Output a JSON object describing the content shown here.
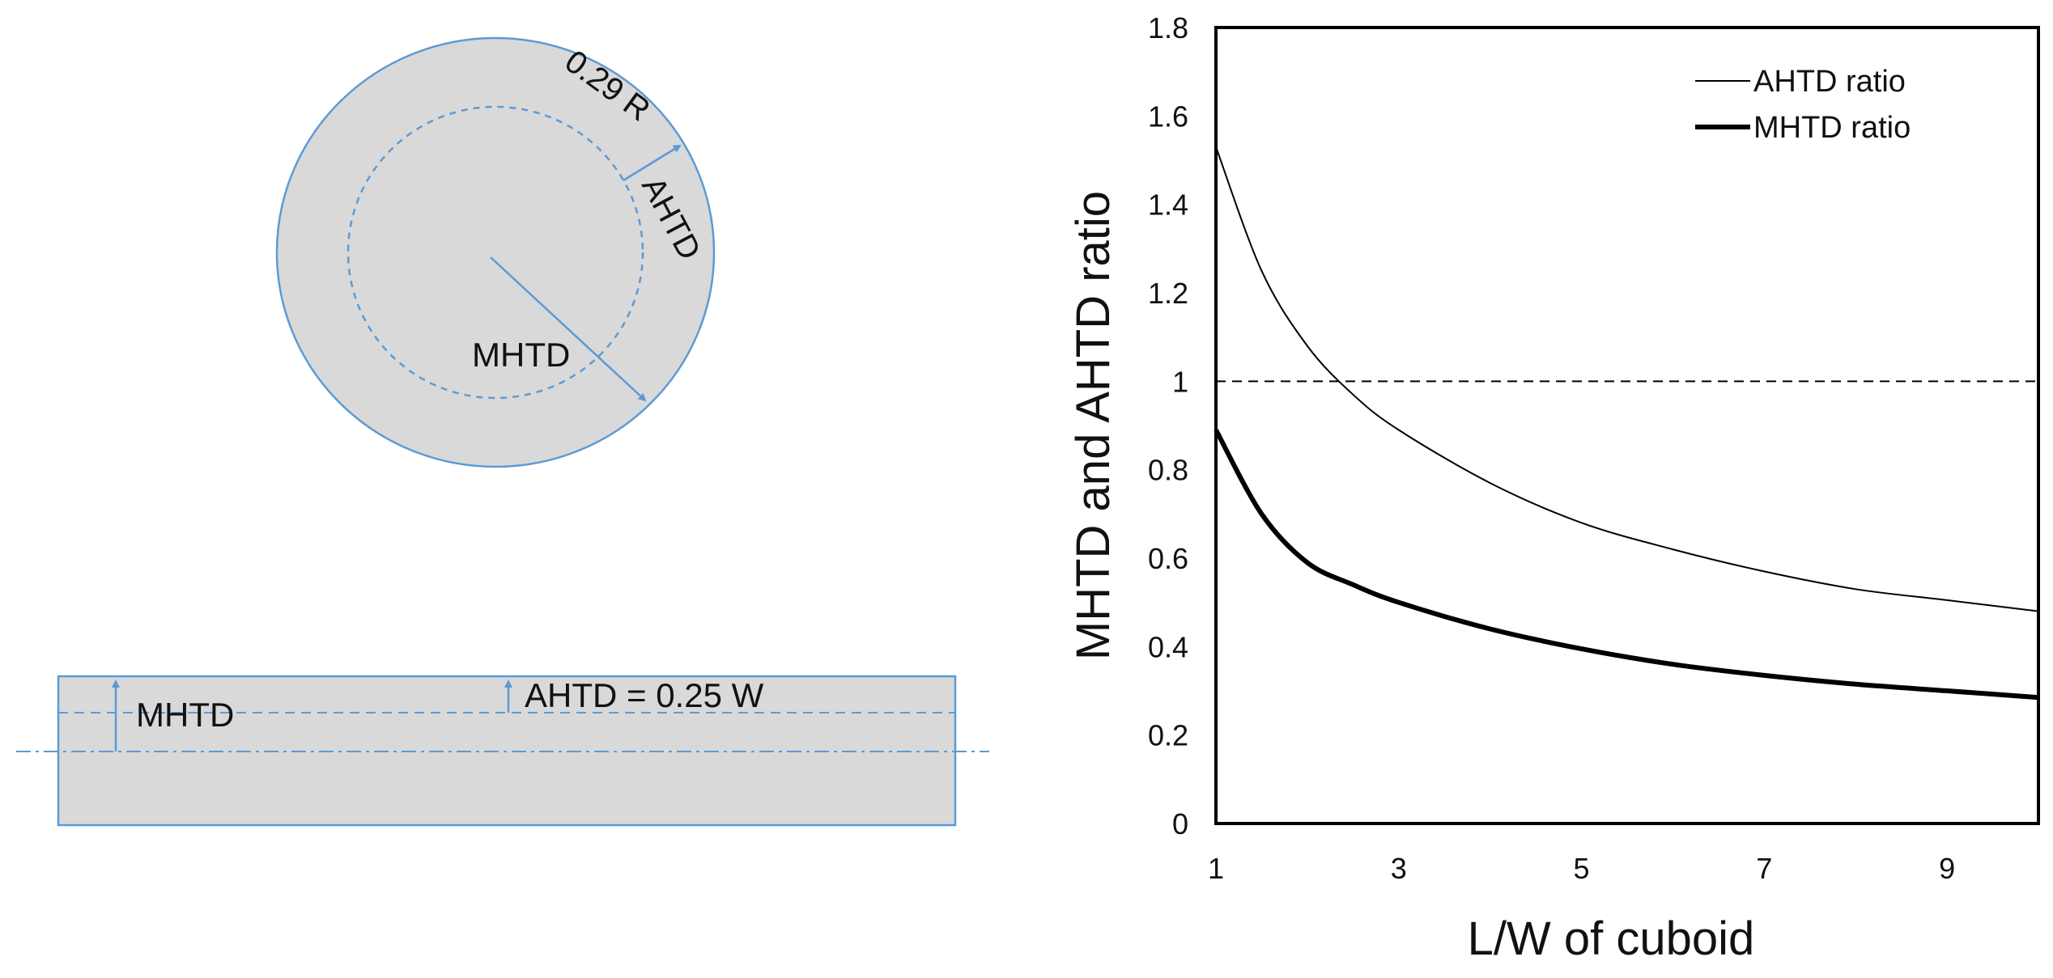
{
  "diagram": {
    "circle_labels": {
      "radius": "0.29 R",
      "ahtd": "AHTD",
      "mhtd": "MHTD"
    },
    "slab_labels": {
      "mhtd": "MHTD",
      "ahtd": "AHTD = 0.25 W"
    },
    "colors": {
      "fill": "#d9d9d9",
      "stroke": "#5b9bd5",
      "arrow": "#5b9bd5"
    }
  },
  "chart_data": {
    "type": "line",
    "xlabel": "L/W of cuboid",
    "ylabel": "MHTD and AHTD ratio",
    "xlim": [
      1,
      10
    ],
    "ylim": [
      0,
      1.8
    ],
    "xticks": [
      "1",
      "3",
      "5",
      "7",
      "9"
    ],
    "yticks": [
      "0",
      "0.2",
      "0.4",
      "0.6",
      "0.8",
      "1",
      "1.2",
      "1.4",
      "1.6",
      "1.8"
    ],
    "reference_line": {
      "y": 1,
      "style": "dashed"
    },
    "legend_position": "top-right",
    "grid": false,
    "series": [
      {
        "name": "AHTD ratio",
        "style": "thin",
        "x": [
          1,
          1.5,
          2,
          2.5,
          3,
          4,
          5,
          6,
          7,
          8,
          9,
          10
        ],
        "y": [
          1.53,
          1.25,
          1.08,
          0.97,
          0.89,
          0.77,
          0.68,
          0.62,
          0.57,
          0.53,
          0.505,
          0.48
        ]
      },
      {
        "name": "MHTD ratio",
        "style": "thick",
        "x": [
          1,
          1.5,
          2,
          2.5,
          3,
          4,
          5,
          6,
          7,
          8,
          9,
          10
        ],
        "y": [
          0.89,
          0.7,
          0.59,
          0.54,
          0.5,
          0.44,
          0.395,
          0.36,
          0.335,
          0.315,
          0.3,
          0.285
        ]
      }
    ]
  }
}
